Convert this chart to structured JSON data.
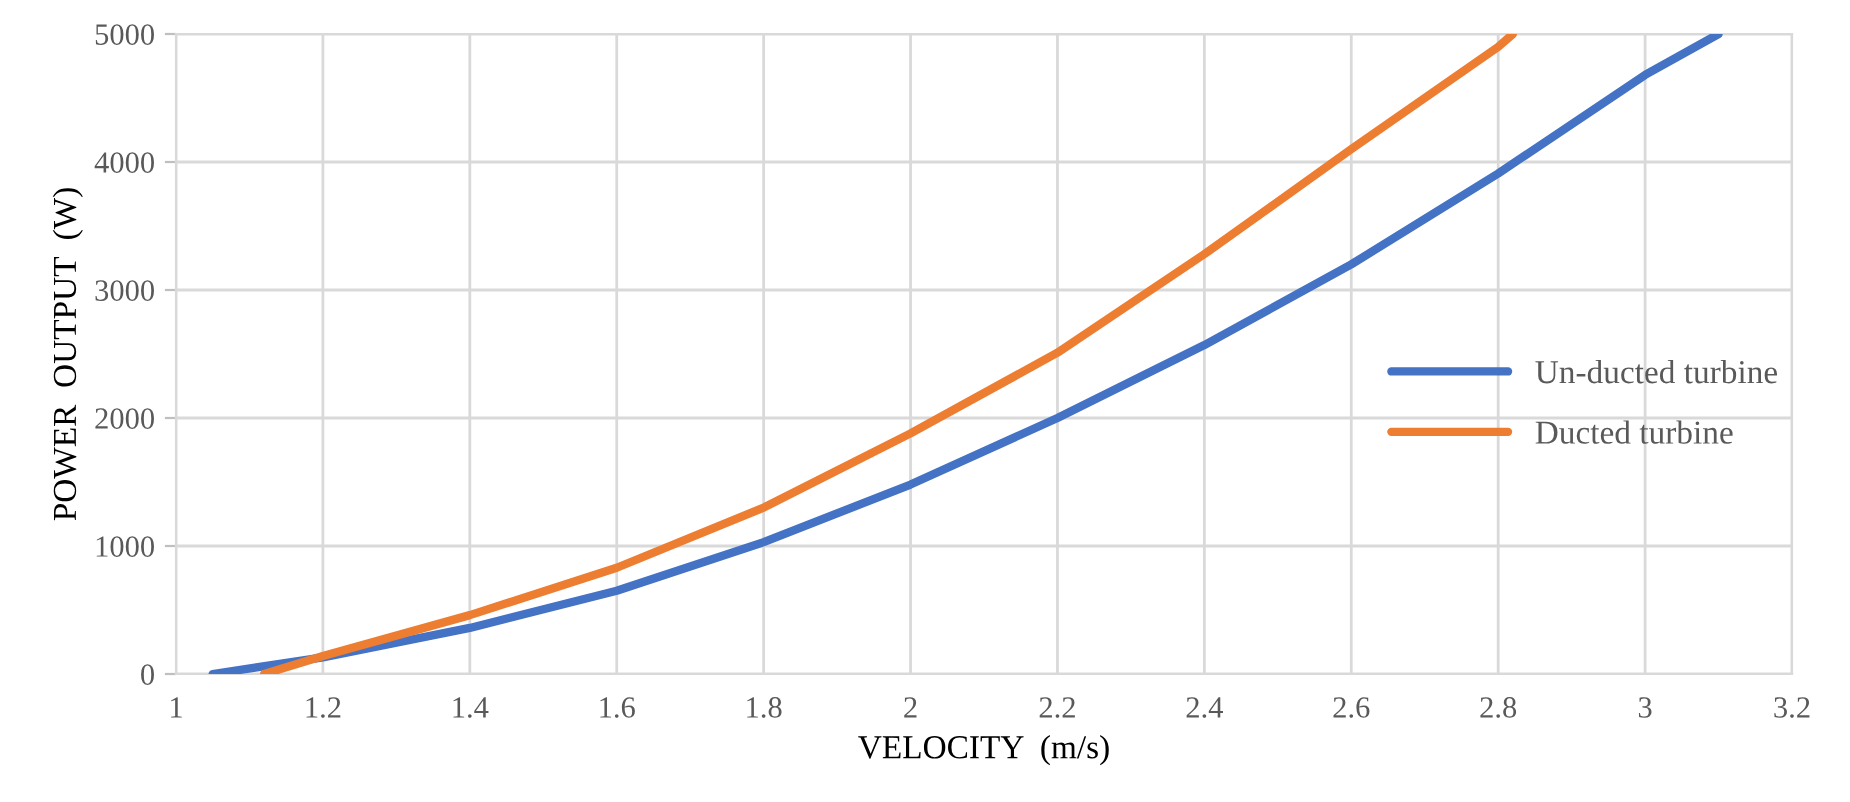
{
  "chart_data": {
    "type": "line",
    "xlabel": "VELOCITY  (m/s)",
    "ylabel": "POWER  OUTPUT  (W)",
    "xlim": [
      1,
      3.2
    ],
    "xticks": [
      1,
      1.2,
      1.4,
      1.6,
      1.8,
      2,
      2.2,
      2.4,
      2.6,
      2.8,
      3,
      3.2
    ],
    "ylim": [
      0,
      5000
    ],
    "yticks": [
      0,
      1000,
      2000,
      3000,
      4000,
      5000
    ],
    "grid": true,
    "legend": "right",
    "marker": "none",
    "line_style": "solid",
    "series": [
      {
        "name": "Un-ducted turbine",
        "color": "#4472c4",
        "x": [
          1.05,
          1.2,
          1.4,
          1.6,
          1.8,
          2.0,
          2.2,
          2.4,
          2.6,
          2.8,
          3.0,
          3.1
        ],
        "values": [
          0,
          130,
          360,
          650,
          1030,
          1480,
          2000,
          2570,
          3200,
          3910,
          4680,
          5000
        ]
      },
      {
        "name": "Ducted turbine",
        "color": "#ed7d31",
        "x": [
          1.12,
          1.2,
          1.4,
          1.6,
          1.8,
          2.0,
          2.2,
          2.4,
          2.6,
          2.8,
          2.82
        ],
        "values": [
          0,
          140,
          460,
          830,
          1300,
          1880,
          2510,
          3280,
          4100,
          4900,
          5000
        ]
      }
    ]
  }
}
